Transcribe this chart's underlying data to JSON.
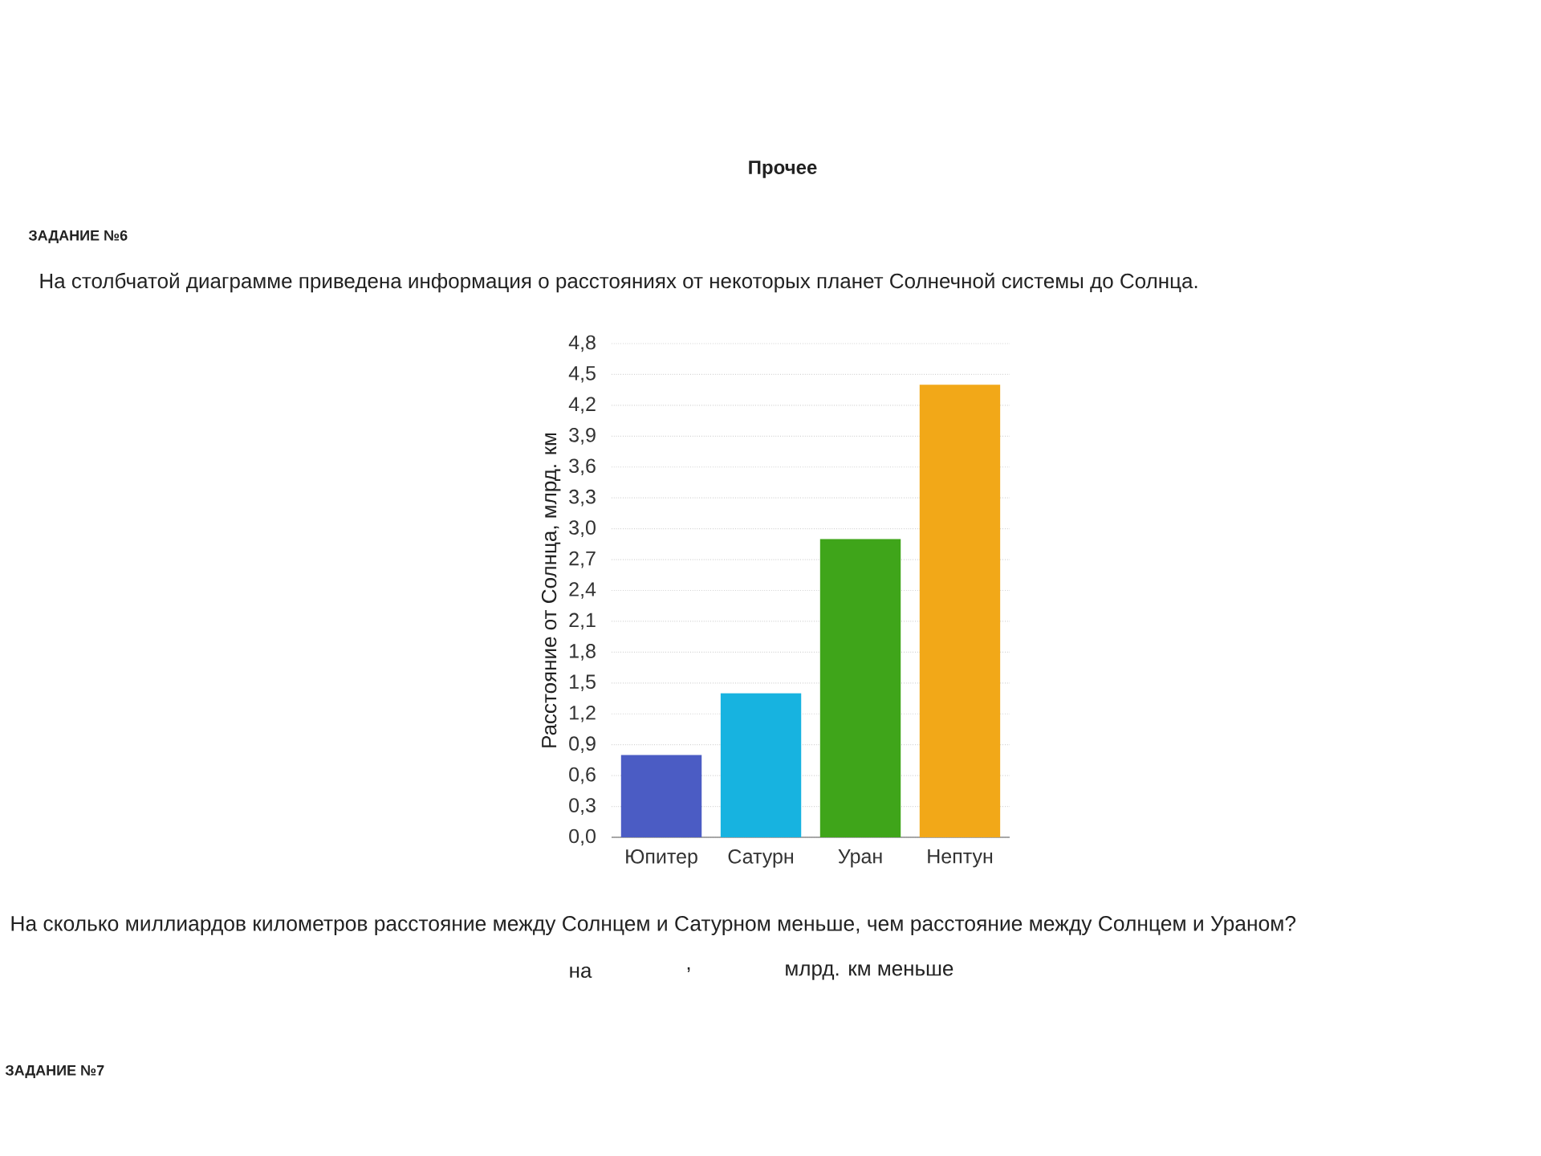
{
  "chart_data": {
    "type": "bar",
    "title": "На столбчатой диаграмме приведена информация о расстояниях от некоторых планет Солнечной системы до Солнца.",
    "ylabel": "Расстояние от Солнца, млрд. км",
    "categories": [
      "Юпитер",
      "Сатурн",
      "Уран",
      "Нептун"
    ],
    "values": [
      0.8,
      1.4,
      2.9,
      4.4
    ],
    "colors": [
      "#4b5cc4",
      "#17b3e0",
      "#3fa51a",
      "#f2a818"
    ],
    "ylim": [
      0,
      4.8
    ],
    "yticks": [
      {
        "value": 0,
        "label": "0,0"
      },
      {
        "value": 0.3,
        "label": "0,3"
      },
      {
        "value": 0.6,
        "label": "0,6"
      },
      {
        "value": 0.9,
        "label": "0,9"
      },
      {
        "value": 1.2,
        "label": "1,2"
      },
      {
        "value": 1.5,
        "label": "1,5"
      },
      {
        "value": 1.8,
        "label": "1,8"
      },
      {
        "value": 2.1,
        "label": "2,1"
      },
      {
        "value": 2.4,
        "label": "2,4"
      },
      {
        "value": 2.7,
        "label": "2,7"
      },
      {
        "value": 3.0,
        "label": "3,0"
      },
      {
        "value": 3.3,
        "label": "3,3"
      },
      {
        "value": 3.6,
        "label": "3,6"
      },
      {
        "value": 3.9,
        "label": "3,9"
      },
      {
        "value": 4.2,
        "label": "4,2"
      },
      {
        "value": 4.5,
        "label": "4,5"
      },
      {
        "value": 4.8,
        "label": "4,8"
      }
    ],
    "grid": "y",
    "annotations": [
      "Прочее",
      "ЗАДАНИЕ №6",
      "На сколько миллиардов километров расстояние между Солнцем и Сатурном меньше, чем расстояние между Солнцем и Ураном?",
      "на",
      ",",
      "млрд. км меньше",
      "ЗАДАНИЕ №7"
    ]
  }
}
